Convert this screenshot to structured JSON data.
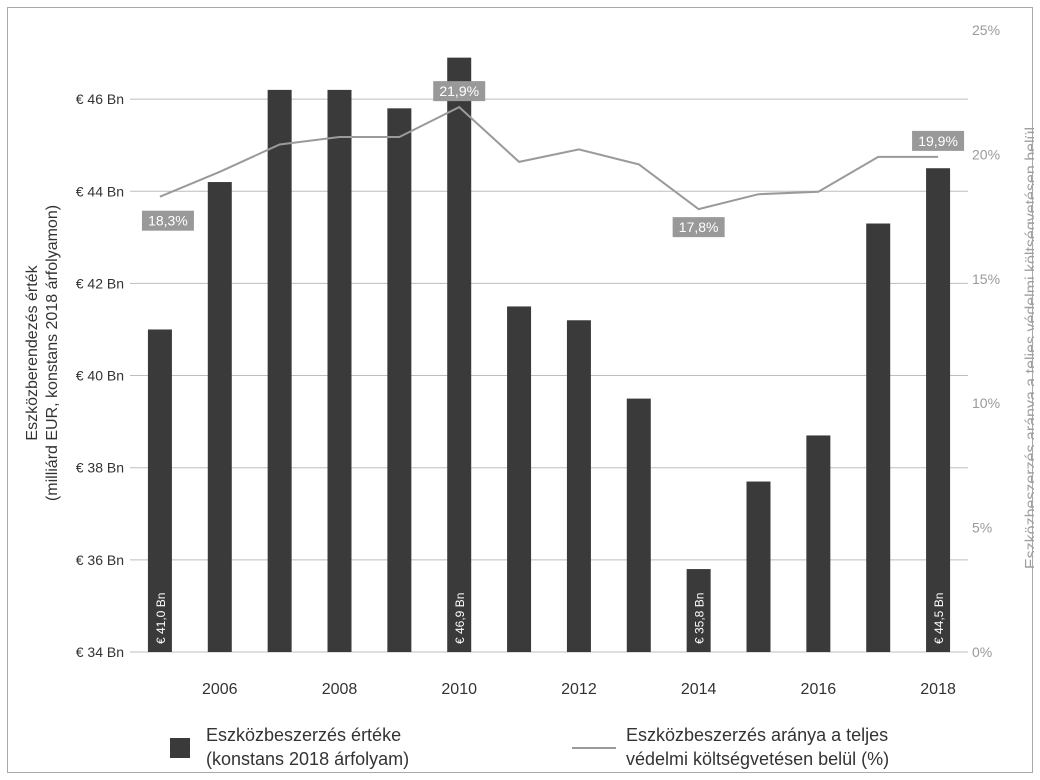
{
  "chart_data": {
    "type": "bar",
    "categories": [
      "2005",
      "2006",
      "2007",
      "2008",
      "2009",
      "2010",
      "2011",
      "2012",
      "2013",
      "2014",
      "2015",
      "2016",
      "2017",
      "2018"
    ],
    "x_tick_labels": [
      "2006",
      "2008",
      "2010",
      "2012",
      "2014",
      "2016",
      "2018"
    ],
    "series": [
      {
        "name": "Eszközbeszerzés értéke\n(konstans 2018 árfolyam)",
        "axis": "left",
        "values": [
          41.0,
          44.2,
          46.2,
          46.2,
          45.8,
          46.9,
          41.5,
          41.2,
          39.5,
          35.8,
          37.7,
          38.7,
          43.3,
          44.5
        ],
        "color": "#3a3a3a"
      },
      {
        "name": "Eszközbeszerzés aránya a teljes\nvédelmi költségvetésen belül (%)",
        "axis": "right",
        "type": "line",
        "values": [
          18.3,
          19.3,
          20.4,
          20.7,
          20.7,
          21.9,
          19.7,
          20.2,
          19.6,
          17.8,
          18.4,
          18.5,
          19.9,
          19.9
        ],
        "color": "#9a9a9a"
      }
    ],
    "bar_labels": [
      {
        "index": 0,
        "text": "€ 41,0 Bn"
      },
      {
        "index": 5,
        "text": "€ 46,9 Bn"
      },
      {
        "index": 9,
        "text": "€ 35,8 Bn"
      },
      {
        "index": 13,
        "text": "€ 44,5 Bn"
      }
    ],
    "line_labels": [
      {
        "index": 0,
        "text": "18,3%"
      },
      {
        "index": 5,
        "text": "21,9%"
      },
      {
        "index": 9,
        "text": "17,8%"
      },
      {
        "index": 13,
        "text": "19,9%"
      }
    ],
    "y_left": {
      "label_line1": "Eszközberendezés érték",
      "label_line2": "(milliárd EUR, konstans 2018 árfolyamon)",
      "ylim": [
        34,
        47.5
      ],
      "ticks": [
        34,
        36,
        38,
        40,
        42,
        44,
        46
      ],
      "tick_labels": [
        "€ 34 Bn",
        "€ 36 Bn",
        "€ 38 Bn",
        "€ 40 Bn",
        "€ 42 Bn",
        "€ 44 Bn",
        "€ 46 Bn"
      ]
    },
    "y_right": {
      "label": "Eszközbeszerzés aránya a teljes védelmi költségvetésen belül",
      "ylim": [
        0,
        25
      ],
      "ticks": [
        0,
        5,
        10,
        15,
        20,
        25
      ],
      "tick_labels": [
        "0%",
        "5%",
        "10%",
        "15%",
        "20%",
        "25%"
      ]
    },
    "grid": true,
    "legend_position": "bottom",
    "colors": {
      "bars": "#3a3a3a",
      "line": "#9a9a9a",
      "grid": "#bdbdbd",
      "label_box": "#999999"
    }
  }
}
